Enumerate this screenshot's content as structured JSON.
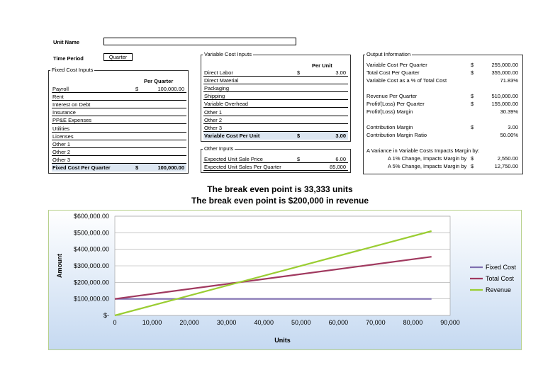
{
  "unit_name": {
    "label": "Unit Name",
    "value": ""
  },
  "time_period": {
    "label": "Time Period",
    "value": "Quarter"
  },
  "fixed_costs": {
    "title": "Fixed Cost Inputs",
    "column_header": "Per Quarter",
    "rows": [
      {
        "name": "Payroll",
        "currency": "$",
        "value": "100,000.00"
      },
      {
        "name": "Rent",
        "currency": "",
        "value": ""
      },
      {
        "name": "Interest on Debt",
        "currency": "",
        "value": ""
      },
      {
        "name": "Insurance",
        "currency": "",
        "value": ""
      },
      {
        "name": "PP&E Expenses",
        "currency": "",
        "value": ""
      },
      {
        "name": "Utilities",
        "currency": "",
        "value": ""
      },
      {
        "name": "Licenses",
        "currency": "",
        "value": ""
      },
      {
        "name": "Other 1",
        "currency": "",
        "value": ""
      },
      {
        "name": "Other 2",
        "currency": "",
        "value": ""
      },
      {
        "name": "Other 3",
        "currency": "",
        "value": ""
      }
    ],
    "total": {
      "name": "Fixed Cost Per Quarter",
      "currency": "$",
      "value": "100,000.00"
    }
  },
  "variable_costs": {
    "title": "Variable Cost Inputs",
    "column_header": "Per Unit",
    "rows": [
      {
        "name": "Direct Labor",
        "currency": "$",
        "value": "3.00"
      },
      {
        "name": "Direct Material",
        "currency": "",
        "value": ""
      },
      {
        "name": "Packaging",
        "currency": "",
        "value": ""
      },
      {
        "name": "Shipping",
        "currency": "",
        "value": ""
      },
      {
        "name": "Variable Overhead",
        "currency": "",
        "value": ""
      },
      {
        "name": "Other 1",
        "currency": "",
        "value": ""
      },
      {
        "name": "Other 2",
        "currency": "",
        "value": ""
      },
      {
        "name": "Other 3",
        "currency": "",
        "value": ""
      }
    ],
    "total": {
      "name": "Variable Cost Per Unit",
      "currency": "$",
      "value": "3.00"
    }
  },
  "other_inputs": {
    "title": "Other Inputs",
    "rows": [
      {
        "name": "Expected Unit Sale Price",
        "currency": "$",
        "value": "6.00"
      },
      {
        "name": "Expected Unit Sales Per Quarter",
        "currency": "",
        "value": "85,000"
      }
    ]
  },
  "output": {
    "title": "Output Information",
    "rows": [
      {
        "name": "Variable Cost Per Quarter",
        "currency": "$",
        "value": "255,000.00"
      },
      {
        "name": "Total Cost Per Quarter",
        "currency": "$",
        "value": "355,000.00"
      },
      {
        "name": "Variable Cost as a % of Total Cost",
        "currency": "",
        "value": "71.83%"
      },
      {
        "name": "Revenue Per Quarter",
        "currency": "$",
        "value": "510,000.00"
      },
      {
        "name": "Profit/(Loss) Per Quarter",
        "currency": "$",
        "value": "155,000.00"
      },
      {
        "name": "Profit/(Loss) Margin",
        "currency": "",
        "value": "30.39%"
      },
      {
        "name": "Contribution Margin",
        "currency": "$",
        "value": "3.00"
      },
      {
        "name": "Contribution Margin Ratio",
        "currency": "",
        "value": "50.00%"
      }
    ],
    "variance_header": "A Variance in Variable Costs Impacts Margin by:",
    "variance_rows": [
      {
        "name": "A 1% Change, Impacts Margin by",
        "currency": "$",
        "value": "2,550.00"
      },
      {
        "name": "A 5% Change, Impacts Margin by",
        "currency": "$",
        "value": "12,750.00"
      }
    ]
  },
  "headline": {
    "units": "The break even point is 33,333 units",
    "revenue": "The break even point is $200,000 in revenue"
  },
  "chart_data": {
    "type": "line",
    "title": "",
    "xlabel": "Units",
    "ylabel": "Amount",
    "xlim": [
      0,
      90000
    ],
    "ylim": [
      0,
      600000
    ],
    "x_ticks": [
      0,
      10000,
      20000,
      30000,
      40000,
      50000,
      60000,
      70000,
      80000,
      90000
    ],
    "x_tick_labels": [
      "0",
      "10,000",
      "20,000",
      "30,000",
      "40,000",
      "50,000",
      "60,000",
      "70,000",
      "80,000",
      "90,000"
    ],
    "y_ticks": [
      0,
      100000,
      200000,
      300000,
      400000,
      500000,
      600000
    ],
    "y_tick_labels": [
      "$-",
      "$100,000.00",
      "$200,000.00",
      "$300,000.00",
      "$400,000.00",
      "$500,000.00",
      "$600,000.00"
    ],
    "grid": "horizontal",
    "legend": "right",
    "series": [
      {
        "name": "Fixed Cost",
        "color": "#7f6fb0",
        "points": [
          [
            0,
            100000
          ],
          [
            85000,
            100000
          ]
        ]
      },
      {
        "name": "Total Cost",
        "color": "#a0395f",
        "points": [
          [
            0,
            100000
          ],
          [
            85000,
            355000
          ]
        ]
      },
      {
        "name": "Revenue",
        "color": "#9acd32",
        "points": [
          [
            0,
            0
          ],
          [
            85000,
            510000
          ]
        ]
      }
    ]
  }
}
